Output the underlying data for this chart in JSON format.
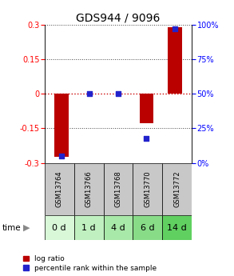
{
  "title": "GDS944 / 9096",
  "samples": [
    "GSM13764",
    "GSM13766",
    "GSM13768",
    "GSM13770",
    "GSM13772"
  ],
  "time_labels": [
    "0 d",
    "1 d",
    "4 d",
    "6 d",
    "14 d"
  ],
  "log_ratios": [
    -0.272,
    0.0,
    0.0,
    -0.128,
    0.29
  ],
  "percentile_ranks": [
    5.0,
    50.0,
    50.0,
    18.0,
    97.0
  ],
  "ylim_left": [
    -0.3,
    0.3
  ],
  "ylim_right": [
    0,
    100
  ],
  "yticks_left": [
    -0.3,
    -0.15,
    0,
    0.15,
    0.3
  ],
  "yticks_right": [
    0,
    25,
    50,
    75,
    100
  ],
  "bar_color": "#bb0000",
  "dot_color": "#2222cc",
  "bar_width": 0.5,
  "zero_line_color": "#cc0000",
  "dotted_color": "#444444",
  "cell_bg_gray": "#c8c8c8",
  "green_colors": [
    "#d8f8d8",
    "#c0f0c0",
    "#a8e8a8",
    "#88dc88",
    "#60d060"
  ],
  "time_arrow_color": "#888888",
  "title_fontsize": 10,
  "tick_fontsize": 7,
  "sample_fontsize": 6,
  "time_fontsize": 8,
  "legend_fontsize": 6.5
}
